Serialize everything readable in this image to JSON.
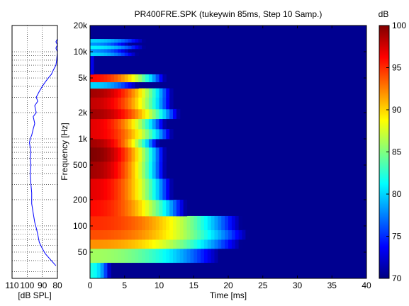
{
  "chart_data": [
    {
      "type": "line",
      "xlabel": "[dB SPL]",
      "xticks": [
        110,
        100,
        90,
        80
      ],
      "xtick_labels": [
        "110",
        "100",
        "90",
        "80"
      ],
      "xlim": [
        110,
        80
      ],
      "x_reversed": true,
      "yscale": "log",
      "ylim": [
        25,
        20000
      ],
      "grid": true,
      "line_color": "#0000ff",
      "series": [
        {
          "points": [
            [
              81,
              35
            ],
            [
              84,
              40
            ],
            [
              88,
              48
            ],
            [
              90,
              55
            ],
            [
              92,
              65
            ],
            [
              93,
              80
            ],
            [
              94,
              95
            ],
            [
              95,
              110
            ],
            [
              96,
              140
            ],
            [
              97,
              180
            ],
            [
              97,
              240
            ],
            [
              97.5,
              300
            ],
            [
              98,
              400
            ],
            [
              97.5,
              500
            ],
            [
              98,
              600
            ],
            [
              97.5,
              700
            ],
            [
              98,
              800
            ],
            [
              98.5,
              900
            ],
            [
              98,
              1000
            ],
            [
              97,
              1100
            ],
            [
              96,
              1300
            ],
            [
              95,
              1500
            ],
            [
              96,
              1800
            ],
            [
              94,
              2000
            ],
            [
              95,
              2400
            ],
            [
              93,
              2700
            ],
            [
              94,
              3000
            ],
            [
              92,
              3500
            ],
            [
              90,
              4000
            ],
            [
              88,
              4500
            ],
            [
              86,
              5000
            ],
            [
              84,
              5500
            ],
            [
              83,
              6000
            ],
            [
              82,
              6500
            ],
            [
              81,
              7000
            ],
            [
              80.5,
              8000
            ],
            [
              80,
              10000
            ],
            [
              81,
              11000
            ],
            [
              80,
              12000
            ],
            [
              81,
              13000
            ],
            [
              80,
              14000
            ]
          ]
        }
      ]
    },
    {
      "type": "heatmap",
      "title": "PR400FRE.SPK (tukeywin 85ms, Step 10 Samp.)",
      "xlabel": "Time [ms]",
      "ylabel": "Frequency [Hz]",
      "xlim": [
        0,
        40
      ],
      "ylim": [
        25,
        20000
      ],
      "yscale": "log",
      "xticks": [
        0,
        5,
        10,
        15,
        20,
        25,
        30,
        35,
        40
      ],
      "yticks": [
        50,
        100,
        200,
        500,
        1000,
        2000,
        5000,
        10000,
        20000
      ],
      "ytick_labels": [
        "50",
        "100",
        "200",
        "500",
        "1k",
        "2k",
        "5k",
        "10k",
        "20k"
      ],
      "colorbar": {
        "label": "dB",
        "range": [
          70,
          100
        ],
        "ticks": [
          70,
          75,
          80,
          85,
          90,
          95,
          100
        ],
        "colormap": "jet"
      },
      "colormap_stops": [
        "#000080",
        "#0000ff",
        "#00ffff",
        "#ffff00",
        "#ff0000",
        "#800000"
      ],
      "background_value": 70,
      "bands": [
        {
          "freq_lo": 25,
          "freq_hi": 38,
          "t_end": 3,
          "peak": 82
        },
        {
          "freq_lo": 38,
          "freq_hi": 55,
          "t_end": 19,
          "peak": 86
        },
        {
          "freq_lo": 55,
          "freq_hi": 70,
          "t_end": 22,
          "peak": 92
        },
        {
          "freq_lo": 70,
          "freq_hi": 90,
          "t_end": 23,
          "peak": 94
        },
        {
          "freq_lo": 90,
          "freq_hi": 130,
          "t_end": 22,
          "peak": 95
        },
        {
          "freq_lo": 130,
          "freq_hi": 200,
          "t_end": 14,
          "peak": 96
        },
        {
          "freq_lo": 200,
          "freq_hi": 350,
          "t_end": 12,
          "peak": 97
        },
        {
          "freq_lo": 350,
          "freq_hi": 550,
          "t_end": 11,
          "peak": 99
        },
        {
          "freq_lo": 550,
          "freq_hi": 800,
          "t_end": 11,
          "peak": 100
        },
        {
          "freq_lo": 800,
          "freq_hi": 1000,
          "t_end": 10,
          "peak": 99
        },
        {
          "freq_lo": 1000,
          "freq_hi": 1300,
          "t_end": 12,
          "peak": 97
        },
        {
          "freq_lo": 1300,
          "freq_hi": 1700,
          "t_end": 11,
          "peak": 97
        },
        {
          "freq_lo": 1700,
          "freq_hi": 2200,
          "t_end": 13,
          "peak": 99
        },
        {
          "freq_lo": 2200,
          "freq_hi": 3000,
          "t_end": 12,
          "peak": 98
        },
        {
          "freq_lo": 3000,
          "freq_hi": 3800,
          "t_end": 12,
          "peak": 99
        },
        {
          "freq_lo": 3800,
          "freq_hi": 4500,
          "t_end": 7,
          "peak": 80
        },
        {
          "freq_lo": 4500,
          "freq_hi": 5500,
          "t_end": 11,
          "peak": 96
        },
        {
          "freq_lo": 5500,
          "freq_hi": 9000,
          "t_end": 0.5,
          "peak": 74
        },
        {
          "freq_lo": 9000,
          "freq_hi": 9800,
          "t_end": 7,
          "peak": 80
        },
        {
          "freq_lo": 9800,
          "freq_hi": 10800,
          "t_end": 6,
          "peak": 78
        },
        {
          "freq_lo": 10800,
          "freq_hi": 11800,
          "t_end": 8,
          "peak": 81
        },
        {
          "freq_lo": 11800,
          "freq_hi": 12800,
          "t_end": 6,
          "peak": 78
        },
        {
          "freq_lo": 12800,
          "freq_hi": 14000,
          "t_end": 8,
          "peak": 80
        },
        {
          "freq_lo": 14000,
          "freq_hi": 20000,
          "t_end": 0,
          "peak": 70
        }
      ]
    }
  ]
}
